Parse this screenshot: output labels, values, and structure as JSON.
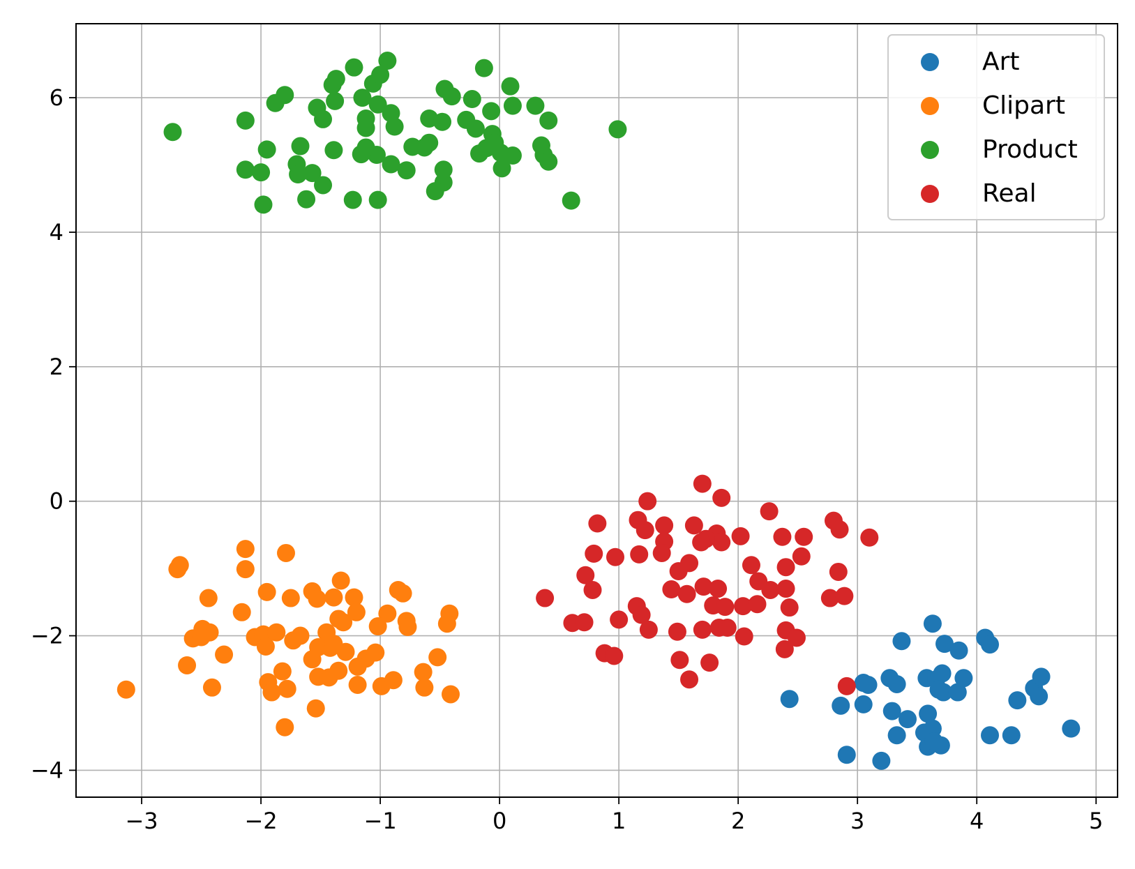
{
  "chart_data": {
    "type": "scatter",
    "title": "",
    "xlabel": "",
    "ylabel": "",
    "xlim": [
      -3.55,
      5.18
    ],
    "ylim": [
      -4.4,
      7.1
    ],
    "x_ticks": [
      -3,
      -2,
      -1,
      0,
      1,
      2,
      3,
      4,
      5
    ],
    "y_ticks": [
      -4,
      -2,
      0,
      2,
      4,
      6
    ],
    "x_tick_labels": [
      "−3",
      "−2",
      "−1",
      "0",
      "1",
      "2",
      "3",
      "4",
      "5"
    ],
    "y_tick_labels": [
      "−4",
      "−2",
      "0",
      "2",
      "4",
      "6"
    ],
    "grid": true,
    "legend_position": "top-right",
    "series": [
      {
        "name": "Art",
        "color": "#1f77b4",
        "points": [
          [
            3.63,
            -1.82
          ],
          [
            4.07,
            -2.03
          ],
          [
            4.11,
            -2.13
          ],
          [
            3.37,
            -2.08
          ],
          [
            3.73,
            -2.12
          ],
          [
            3.85,
            -2.22
          ],
          [
            3.05,
            -2.7
          ],
          [
            3.09,
            -2.73
          ],
          [
            3.27,
            -2.63
          ],
          [
            3.33,
            -2.72
          ],
          [
            3.58,
            -2.63
          ],
          [
            3.66,
            -2.65
          ],
          [
            3.71,
            -2.56
          ],
          [
            3.68,
            -2.8
          ],
          [
            3.72,
            -2.84
          ],
          [
            3.84,
            -2.84
          ],
          [
            3.89,
            -2.63
          ],
          [
            4.48,
            -2.78
          ],
          [
            4.54,
            -2.61
          ],
          [
            4.52,
            -2.9
          ],
          [
            4.34,
            -2.96
          ],
          [
            2.43,
            -2.94
          ],
          [
            2.86,
            -3.04
          ],
          [
            3.05,
            -3.02
          ],
          [
            3.29,
            -3.12
          ],
          [
            3.42,
            -3.24
          ],
          [
            3.59,
            -3.16
          ],
          [
            3.33,
            -3.48
          ],
          [
            3.56,
            -3.44
          ],
          [
            3.63,
            -3.38
          ],
          [
            3.59,
            -3.65
          ],
          [
            3.7,
            -3.63
          ],
          [
            3.64,
            -3.57
          ],
          [
            4.11,
            -3.48
          ],
          [
            4.29,
            -3.48
          ],
          [
            4.79,
            -3.38
          ],
          [
            2.91,
            -3.77
          ],
          [
            3.2,
            -3.86
          ]
        ]
      },
      {
        "name": "Clipart",
        "color": "#ff7f0e",
        "points": [
          [
            -2.13,
            -0.71
          ],
          [
            -2.13,
            -1.01
          ],
          [
            -1.79,
            -0.77
          ],
          [
            -2.68,
            -0.95
          ],
          [
            -2.7,
            -1.01
          ],
          [
            -1.75,
            -1.44
          ],
          [
            -1.95,
            -1.35
          ],
          [
            -2.44,
            -1.44
          ],
          [
            -1.57,
            -1.34
          ],
          [
            -1.53,
            -1.45
          ],
          [
            -1.39,
            -1.43
          ],
          [
            -1.33,
            -1.18
          ],
          [
            -1.22,
            -1.43
          ],
          [
            -1.2,
            -1.65
          ],
          [
            -0.85,
            -1.32
          ],
          [
            -0.81,
            -1.37
          ],
          [
            -0.42,
            -1.67
          ],
          [
            -0.44,
            -1.82
          ],
          [
            -2.16,
            -1.65
          ],
          [
            -0.94,
            -1.67
          ],
          [
            -0.78,
            -1.78
          ],
          [
            -0.77,
            -1.87
          ],
          [
            -1.02,
            -1.86
          ],
          [
            -1.35,
            -1.75
          ],
          [
            -1.31,
            -1.8
          ],
          [
            -1.45,
            -1.95
          ],
          [
            -2.05,
            -2.02
          ],
          [
            -1.98,
            -1.98
          ],
          [
            -1.87,
            -1.95
          ],
          [
            -1.73,
            -2.07
          ],
          [
            -1.67,
            -2.0
          ],
          [
            -2.49,
            -1.9
          ],
          [
            -2.43,
            -1.95
          ],
          [
            -2.57,
            -2.04
          ],
          [
            -2.5,
            -2.02
          ],
          [
            -1.96,
            -2.16
          ],
          [
            -1.52,
            -2.17
          ],
          [
            -1.42,
            -2.18
          ],
          [
            -1.39,
            -2.12
          ],
          [
            -1.29,
            -2.24
          ],
          [
            -1.12,
            -2.34
          ],
          [
            -1.04,
            -2.25
          ],
          [
            -1.19,
            -2.46
          ],
          [
            -2.31,
            -2.28
          ],
          [
            -2.62,
            -2.44
          ],
          [
            -1.94,
            -2.69
          ],
          [
            -1.91,
            -2.84
          ],
          [
            -1.82,
            -2.53
          ],
          [
            -1.52,
            -2.61
          ],
          [
            -1.43,
            -2.62
          ],
          [
            -1.35,
            -2.52
          ],
          [
            -1.19,
            -2.73
          ],
          [
            -0.99,
            -2.75
          ],
          [
            -0.89,
            -2.66
          ],
          [
            -0.64,
            -2.54
          ],
          [
            -0.63,
            -2.77
          ],
          [
            -0.52,
            -2.32
          ],
          [
            -1.57,
            -2.35
          ],
          [
            -2.41,
            -2.77
          ],
          [
            -3.13,
            -2.8
          ],
          [
            -1.78,
            -2.79
          ],
          [
            -1.54,
            -3.08
          ],
          [
            -1.8,
            -3.36
          ],
          [
            -0.41,
            -2.87
          ]
        ]
      },
      {
        "name": "Product",
        "color": "#2ca02c",
        "points": [
          [
            -0.94,
            6.55
          ],
          [
            -1.22,
            6.45
          ],
          [
            -0.13,
            6.44
          ],
          [
            -1.37,
            6.28
          ],
          [
            -1.4,
            6.19
          ],
          [
            -1.06,
            6.21
          ],
          [
            -1.0,
            6.34
          ],
          [
            0.09,
            6.17
          ],
          [
            -0.46,
            6.13
          ],
          [
            -0.4,
            6.02
          ],
          [
            -1.8,
            6.04
          ],
          [
            -1.88,
            5.92
          ],
          [
            -1.38,
            5.95
          ],
          [
            -1.15,
            6.0
          ],
          [
            -0.23,
            5.98
          ],
          [
            0.3,
            5.88
          ],
          [
            0.11,
            5.88
          ],
          [
            -1.02,
            5.9
          ],
          [
            -1.53,
            5.85
          ],
          [
            -0.91,
            5.77
          ],
          [
            -0.59,
            5.69
          ],
          [
            -0.48,
            5.64
          ],
          [
            -0.28,
            5.67
          ],
          [
            -1.48,
            5.68
          ],
          [
            -2.13,
            5.66
          ],
          [
            -1.12,
            5.69
          ],
          [
            -1.12,
            5.55
          ],
          [
            -0.88,
            5.57
          ],
          [
            0.41,
            5.66
          ],
          [
            -0.07,
            5.8
          ],
          [
            0.99,
            5.53
          ],
          [
            -2.74,
            5.49
          ],
          [
            -0.2,
            5.54
          ],
          [
            -0.06,
            5.46
          ],
          [
            -0.04,
            5.33
          ],
          [
            0.35,
            5.29
          ],
          [
            -0.59,
            5.33
          ],
          [
            -0.73,
            5.27
          ],
          [
            -0.63,
            5.26
          ],
          [
            -1.67,
            5.28
          ],
          [
            -1.95,
            5.23
          ],
          [
            -1.39,
            5.22
          ],
          [
            -1.03,
            5.15
          ],
          [
            -1.16,
            5.16
          ],
          [
            -1.12,
            5.26
          ],
          [
            -0.17,
            5.17
          ],
          [
            -0.11,
            5.25
          ],
          [
            0.01,
            5.18
          ],
          [
            0.11,
            5.14
          ],
          [
            0.37,
            5.15
          ],
          [
            0.41,
            5.05
          ],
          [
            -0.91,
            5.01
          ],
          [
            -0.78,
            4.92
          ],
          [
            -1.7,
            5.01
          ],
          [
            -1.69,
            4.86
          ],
          [
            -1.57,
            4.88
          ],
          [
            -2.13,
            4.93
          ],
          [
            -2.0,
            4.89
          ],
          [
            -0.47,
            4.93
          ],
          [
            0.02,
            4.95
          ],
          [
            -1.48,
            4.7
          ],
          [
            -0.47,
            4.74
          ],
          [
            -0.54,
            4.61
          ],
          [
            -1.98,
            4.41
          ],
          [
            -1.62,
            4.49
          ],
          [
            -1.23,
            4.48
          ],
          [
            -1.02,
            4.48
          ],
          [
            0.6,
            4.47
          ]
        ]
      },
      {
        "name": "Real",
        "color": "#d62728",
        "points": [
          [
            1.7,
            0.26
          ],
          [
            1.86,
            0.05
          ],
          [
            1.24,
            0.0
          ],
          [
            2.26,
            -0.15
          ],
          [
            2.8,
            -0.29
          ],
          [
            2.85,
            -0.42
          ],
          [
            0.82,
            -0.33
          ],
          [
            1.16,
            -0.28
          ],
          [
            1.22,
            -0.43
          ],
          [
            1.38,
            -0.36
          ],
          [
            1.63,
            -0.36
          ],
          [
            1.82,
            -0.48
          ],
          [
            1.86,
            -0.61
          ],
          [
            1.73,
            -0.56
          ],
          [
            2.02,
            -0.52
          ],
          [
            2.37,
            -0.53
          ],
          [
            2.55,
            -0.53
          ],
          [
            3.1,
            -0.54
          ],
          [
            1.38,
            -0.6
          ],
          [
            1.69,
            -0.61
          ],
          [
            1.36,
            -0.77
          ],
          [
            1.17,
            -0.79
          ],
          [
            0.79,
            -0.78
          ],
          [
            0.97,
            -0.83
          ],
          [
            1.59,
            -0.92
          ],
          [
            2.11,
            -0.95
          ],
          [
            2.53,
            -0.82
          ],
          [
            1.5,
            -1.04
          ],
          [
            2.4,
            -0.98
          ],
          [
            2.84,
            -1.05
          ],
          [
            0.72,
            -1.1
          ],
          [
            0.78,
            -1.32
          ],
          [
            1.44,
            -1.31
          ],
          [
            1.71,
            -1.27
          ],
          [
            1.83,
            -1.3
          ],
          [
            2.17,
            -1.19
          ],
          [
            2.27,
            -1.32
          ],
          [
            2.4,
            -1.3
          ],
          [
            1.57,
            -1.38
          ],
          [
            2.77,
            -1.44
          ],
          [
            2.89,
            -1.41
          ],
          [
            0.38,
            -1.44
          ],
          [
            1.15,
            -1.56
          ],
          [
            1.79,
            -1.55
          ],
          [
            1.89,
            -1.57
          ],
          [
            2.04,
            -1.56
          ],
          [
            2.16,
            -1.53
          ],
          [
            2.43,
            -1.58
          ],
          [
            1.19,
            -1.69
          ],
          [
            1.0,
            -1.76
          ],
          [
            0.61,
            -1.81
          ],
          [
            0.71,
            -1.8
          ],
          [
            1.25,
            -1.91
          ],
          [
            1.49,
            -1.94
          ],
          [
            1.7,
            -1.91
          ],
          [
            1.84,
            -1.88
          ],
          [
            1.91,
            -1.88
          ],
          [
            2.4,
            -1.92
          ],
          [
            2.49,
            -2.03
          ],
          [
            2.05,
            -2.01
          ],
          [
            2.39,
            -2.2
          ],
          [
            0.88,
            -2.26
          ],
          [
            0.96,
            -2.3
          ],
          [
            1.51,
            -2.36
          ],
          [
            1.76,
            -2.4
          ],
          [
            1.59,
            -2.65
          ],
          [
            2.91,
            -2.75
          ]
        ]
      }
    ]
  }
}
